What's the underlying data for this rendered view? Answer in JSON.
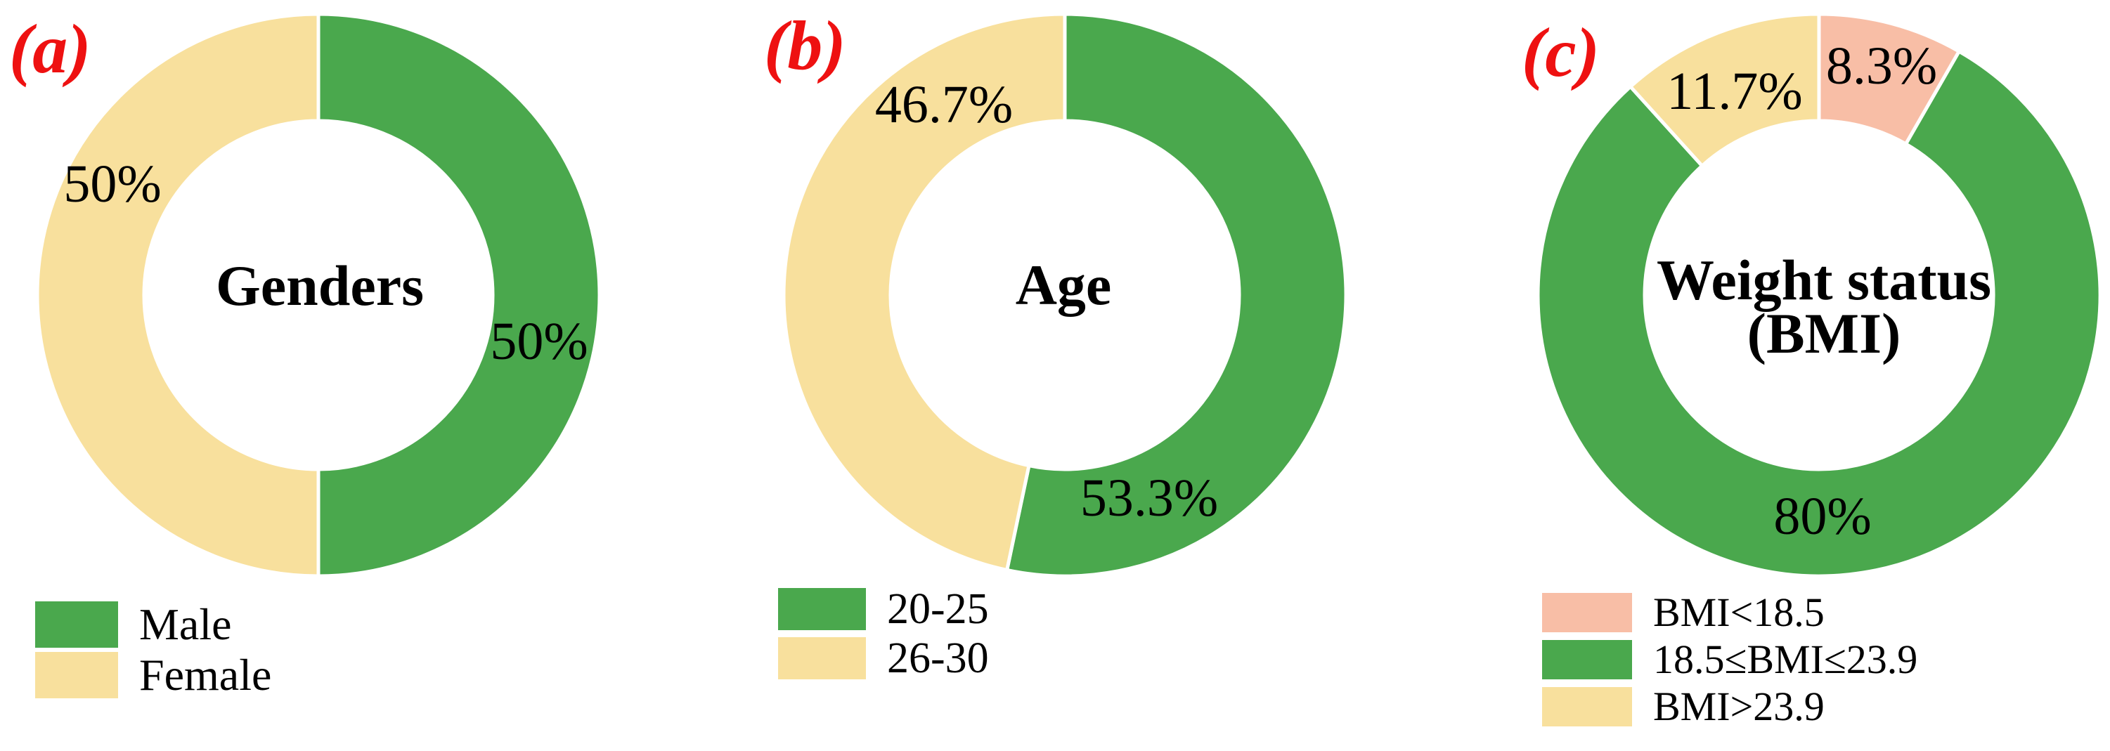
{
  "chart_data": [
    {
      "type": "pie",
      "donut": true,
      "panel_label": "(a)",
      "title": "Genders",
      "title_lines": [
        "Genders"
      ],
      "categories": [
        "Male",
        "Female"
      ],
      "values": [
        50,
        50
      ],
      "value_labels": [
        "50%",
        "50%"
      ],
      "colors": [
        "#4AA84D",
        "#F8E09D"
      ],
      "start_angle_deg": 0,
      "direction": "clockwise",
      "legend_position": "bottom-left"
    },
    {
      "type": "pie",
      "donut": true,
      "panel_label": "(b)",
      "title": "Age",
      "title_lines": [
        "Age"
      ],
      "categories": [
        "20-25",
        "26-30"
      ],
      "values": [
        53.3,
        46.7
      ],
      "value_labels": [
        "53.3%",
        "46.7%"
      ],
      "colors": [
        "#4AA84D",
        "#F8E09D"
      ],
      "start_angle_deg": 0,
      "direction": "clockwise",
      "legend_position": "bottom-left"
    },
    {
      "type": "pie",
      "donut": true,
      "panel_label": "(c)",
      "title": "Weight status (BMI)",
      "title_lines": [
        "Weight status",
        "(BMI)"
      ],
      "categories": [
        "BMI<18.5",
        "18.5≤BMI≤23.9",
        "BMI>23.9"
      ],
      "values": [
        8.3,
        80,
        11.7
      ],
      "value_labels": [
        "8.3%",
        "80%",
        "11.7%"
      ],
      "colors": [
        "#F8BEA6",
        "#4AA84D",
        "#F8E09D"
      ],
      "start_angle_deg": 0,
      "direction": "clockwise",
      "legend_position": "bottom-left"
    }
  ],
  "style": {
    "accent_red": "#ee1111",
    "slice_gap_color": "#ffffff",
    "text_color": "#000000",
    "outer_radius": 400,
    "inner_radius": 248
  }
}
